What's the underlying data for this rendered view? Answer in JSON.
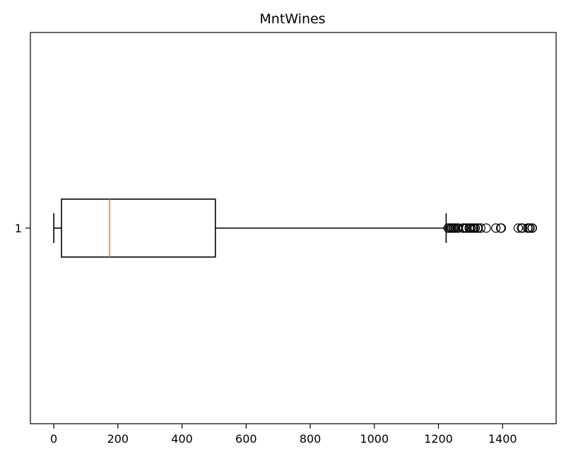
{
  "chart_data": {
    "type": "boxplot",
    "orientation": "horizontal",
    "title": "MntWines",
    "xlabel": "",
    "ylabel": "",
    "xlim": [
      -73,
      1567
    ],
    "x_ticks": [
      0,
      200,
      400,
      600,
      800,
      1000,
      1200,
      1400
    ],
    "categories": [
      "1"
    ],
    "boxes": [
      {
        "category": "1",
        "whisker_low": 0,
        "q1": 24,
        "median": 174,
        "q3": 504,
        "whisker_high": 1224,
        "outliers": [
          1230,
          1234,
          1239,
          1241,
          1245,
          1248,
          1252,
          1253,
          1259,
          1262,
          1276,
          1279,
          1285,
          1288,
          1296,
          1298,
          1302,
          1308,
          1311,
          1315,
          1322,
          1324,
          1332,
          1349,
          1379,
          1394,
          1396,
          1449,
          1459,
          1462,
          1478,
          1482,
          1486,
          1492,
          1493
        ]
      }
    ],
    "colors": {
      "box": "#000000",
      "median": "#ff7f0e",
      "outlier": "#000000"
    },
    "grid": false,
    "legend": "none"
  }
}
